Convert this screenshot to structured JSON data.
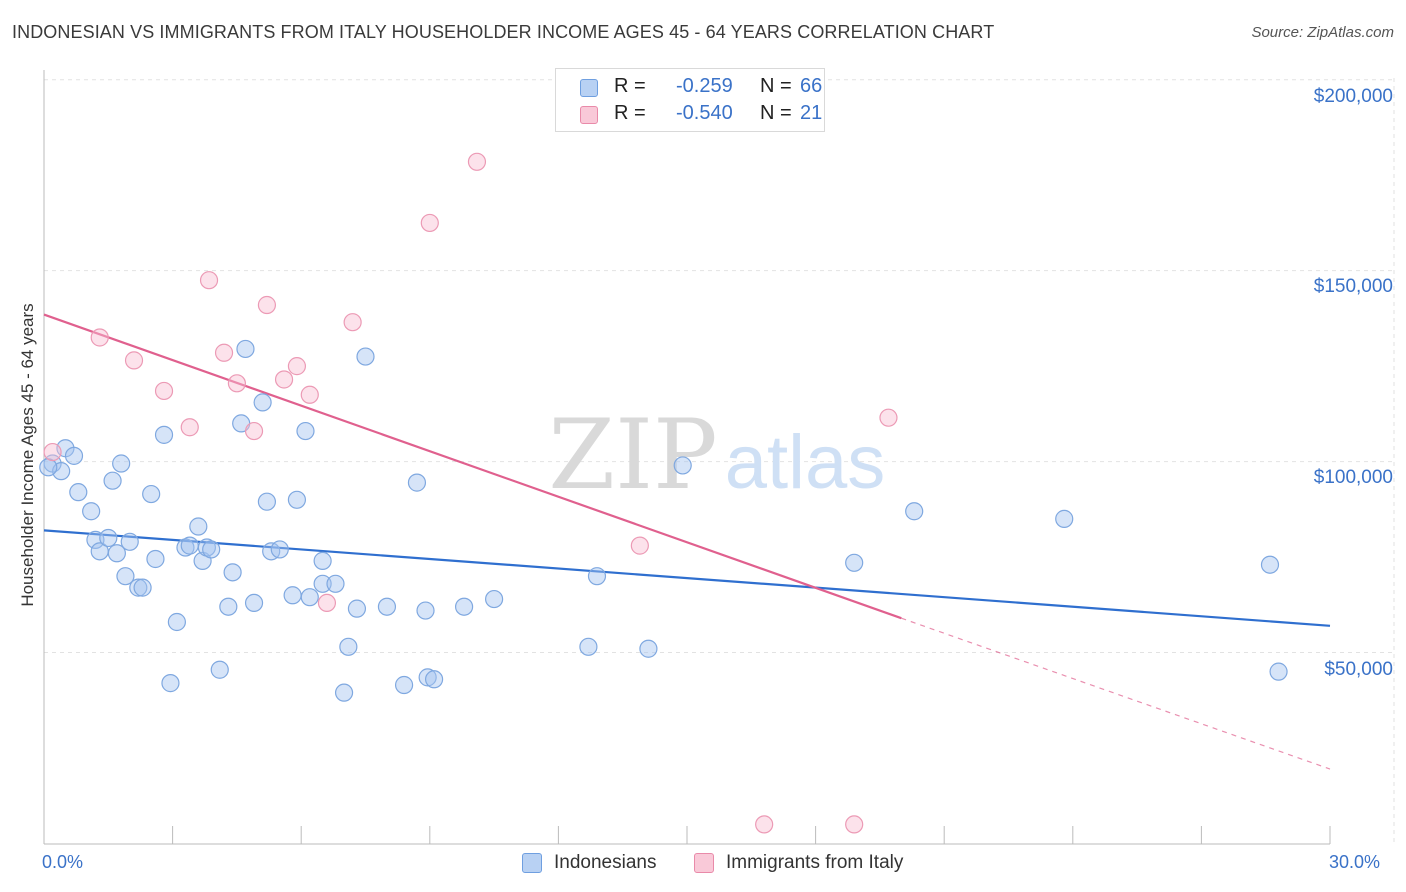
{
  "title": "INDONESIAN VS IMMIGRANTS FROM ITALY HOUSEHOLDER INCOME AGES 45 - 64 YEARS CORRELATION CHART",
  "source": "Source: ZipAtlas.com",
  "watermark": {
    "zip": "ZIP",
    "atlas": "atlas"
  },
  "legend": {
    "rows": [
      {
        "r_label": "R =",
        "r_value": "-0.259",
        "n_label": "N =",
        "n_value": "66",
        "color": "#b8d1f3",
        "border": "#6f9fe0"
      },
      {
        "r_label": "R =",
        "r_value": "-0.540",
        "n_label": "N =",
        "n_value": "21",
        "color": "#f9c9d8",
        "border": "#e98aa9"
      }
    ]
  },
  "bottom_legend": {
    "indonesians": "Indonesians",
    "italy": "Immigrants from Italy"
  },
  "colors": {
    "indo_fill": "rgba(164,196,240,0.45)",
    "indo_stroke": "#7fa8e0",
    "indo_line": "#2f6fcf",
    "italy_fill": "rgba(248,190,210,0.45)",
    "italy_stroke": "#ec9ab5",
    "italy_line": "#e0608e",
    "tick_text": "#3a72c8",
    "grid": "#e2e2e2"
  },
  "chart_data": {
    "type": "scatter",
    "title": "INDONESIAN VS IMMIGRANTS FROM ITALY HOUSEHOLDER INCOME AGES 45 - 64 YEARS CORRELATION CHART",
    "xlabel": "",
    "ylabel": "Householder Income Ages 45 - 64 years",
    "xlim": [
      0,
      30
    ],
    "ylim": [
      0,
      205000
    ],
    "x_tick_labels": {
      "min": "0.0%",
      "max": "30.0%"
    },
    "y_ticks": [
      {
        "value": 50000,
        "label": "$50,000"
      },
      {
        "value": 100000,
        "label": "$100,000"
      },
      {
        "value": 150000,
        "label": "$150,000"
      },
      {
        "value": 200000,
        "label": "$200,000"
      }
    ],
    "grid": true,
    "legend_position": "top-center",
    "series": [
      {
        "name": "Indonesians",
        "trend": {
          "x0": 0,
          "y0": 82000,
          "x1": 30,
          "y1": 57000,
          "dashed_from": null
        },
        "points": [
          [
            0.2,
            99500
          ],
          [
            0.4,
            97500
          ],
          [
            0.5,
            103500
          ],
          [
            0.7,
            101500
          ],
          [
            0.8,
            92000
          ],
          [
            1.1,
            87000
          ],
          [
            1.2,
            79500
          ],
          [
            1.3,
            76500
          ],
          [
            1.5,
            80000
          ],
          [
            1.6,
            95000
          ],
          [
            1.7,
            76000
          ],
          [
            1.8,
            99500
          ],
          [
            1.9,
            70000
          ],
          [
            2.0,
            79000
          ],
          [
            2.2,
            67000
          ],
          [
            2.3,
            67000
          ],
          [
            2.5,
            91500
          ],
          [
            2.6,
            74500
          ],
          [
            2.8,
            107000
          ],
          [
            2.95,
            42000
          ],
          [
            3.1,
            58000
          ],
          [
            3.3,
            77500
          ],
          [
            3.4,
            78000
          ],
          [
            3.6,
            83000
          ],
          [
            3.7,
            74000
          ],
          [
            3.8,
            77500
          ],
          [
            3.9,
            77000
          ],
          [
            4.1,
            45500
          ],
          [
            4.3,
            62000
          ],
          [
            4.4,
            71000
          ],
          [
            4.6,
            110000
          ],
          [
            4.7,
            129500
          ],
          [
            4.9,
            63000
          ],
          [
            5.1,
            115500
          ],
          [
            5.2,
            89500
          ],
          [
            5.3,
            76500
          ],
          [
            5.5,
            77000
          ],
          [
            5.8,
            65000
          ],
          [
            5.9,
            90000
          ],
          [
            6.1,
            108000
          ],
          [
            6.2,
            64500
          ],
          [
            6.5,
            74000
          ],
          [
            6.5,
            68000
          ],
          [
            6.8,
            68000
          ],
          [
            7.0,
            39500
          ],
          [
            7.1,
            51500
          ],
          [
            7.3,
            61500
          ],
          [
            7.5,
            127500
          ],
          [
            8.0,
            62000
          ],
          [
            8.4,
            41500
          ],
          [
            8.7,
            94500
          ],
          [
            8.9,
            61000
          ],
          [
            8.95,
            43500
          ],
          [
            9.1,
            43000
          ],
          [
            9.8,
            62000
          ],
          [
            10.5,
            64000
          ],
          [
            12.7,
            51500
          ],
          [
            12.9,
            70000
          ],
          [
            14.1,
            51000
          ],
          [
            14.9,
            99000
          ],
          [
            18.9,
            73500
          ],
          [
            20.3,
            87000
          ],
          [
            23.8,
            85000
          ],
          [
            28.6,
            73000
          ],
          [
            28.8,
            45000
          ],
          [
            0.1,
            98500
          ]
        ]
      },
      {
        "name": "Immigrants from Italy",
        "trend": {
          "x0": 0,
          "y0": 138500,
          "x1": 20.0,
          "y1": 59000,
          "x2": 30,
          "y2": 19500
        },
        "points": [
          [
            0.2,
            102500
          ],
          [
            1.3,
            132500
          ],
          [
            2.1,
            126500
          ],
          [
            2.8,
            118500
          ],
          [
            3.4,
            109000
          ],
          [
            3.85,
            147500
          ],
          [
            4.2,
            128500
          ],
          [
            4.5,
            120500
          ],
          [
            4.9,
            108000
          ],
          [
            5.2,
            141000
          ],
          [
            5.6,
            121500
          ],
          [
            5.9,
            125000
          ],
          [
            6.2,
            117500
          ],
          [
            6.6,
            63000
          ],
          [
            7.2,
            136500
          ],
          [
            9.0,
            162500
          ],
          [
            10.1,
            178500
          ],
          [
            13.9,
            78000
          ],
          [
            16.8,
            5000
          ],
          [
            18.9,
            5000
          ],
          [
            19.7,
            111500
          ]
        ]
      }
    ]
  }
}
